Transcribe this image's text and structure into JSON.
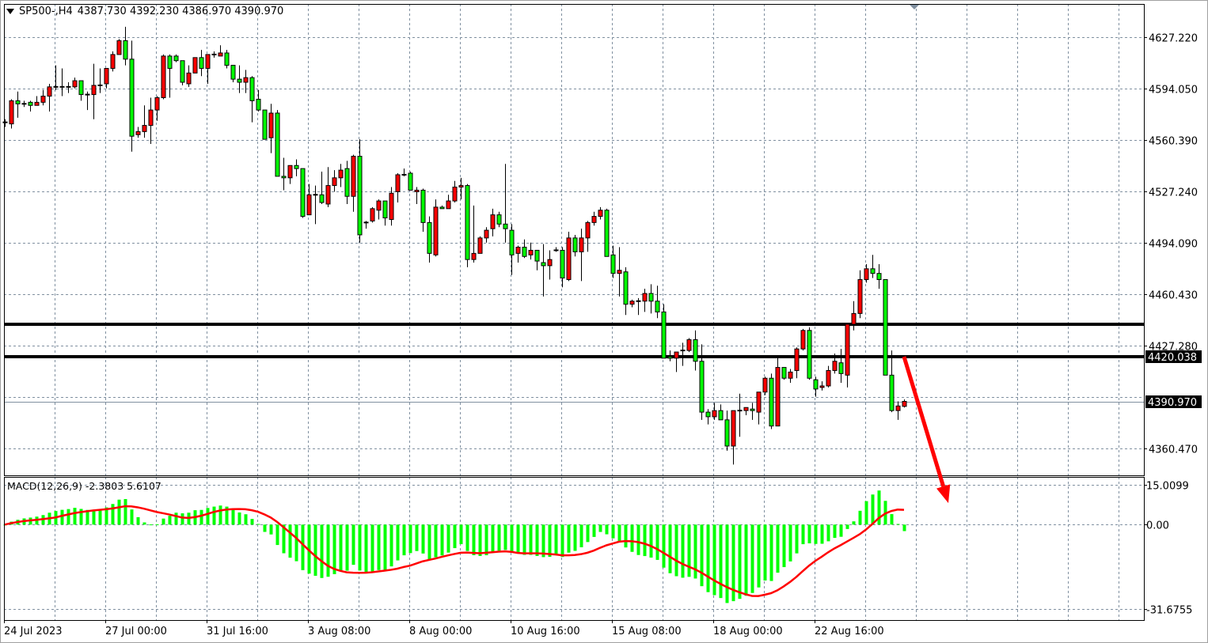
{
  "header": {
    "symbol": "SP500-,H4",
    "ohlc": "4387.730 4392.230 4386.970 4390.970"
  },
  "chart_data": {
    "type": "candlestick",
    "symbol": "SP500-",
    "timeframe": "H4",
    "candle_colors": {
      "bull": "#ff0000",
      "bear": "#00ff00",
      "outline": "#000000"
    },
    "ylim": [
      4343.0,
      4648.8
    ],
    "grid": true,
    "y_ticks": [
      "4627.220",
      "4594.050",
      "4560.390",
      "4527.240",
      "4494.090",
      "4460.430",
      "4427.280",
      "4360.470"
    ],
    "x_ticks": [
      {
        "index": 0,
        "label": "24 Jul 2023"
      },
      {
        "index": 16,
        "label": "27 Jul 00:00"
      },
      {
        "index": 32,
        "label": "31 Jul 16:00"
      },
      {
        "index": 48,
        "label": "3 Aug 08:00"
      },
      {
        "index": 64,
        "label": "8 Aug 00:00"
      },
      {
        "index": 80,
        "label": "10 Aug 16:00"
      },
      {
        "index": 96,
        "label": "15 Aug 08:00"
      },
      {
        "index": 112,
        "label": "18 Aug 00:00"
      },
      {
        "index": 128,
        "label": "22 Aug 16:00"
      }
    ],
    "horizontal_lines": [
      4441.0,
      4420.038
    ],
    "line_label": "4420.038",
    "current_price_label": "4390.970",
    "current_price": 4390.97,
    "arrow": {
      "color": "#ff0000",
      "from": {
        "index": 142,
        "price": 4420
      },
      "to": {
        "index": 149,
        "price": 4325
      }
    },
    "candles_ohlc": [
      [
        4572,
        4574,
        4569,
        4572
      ],
      [
        4571,
        4587,
        4568,
        4586
      ],
      [
        4586,
        4592,
        4575,
        4584
      ],
      [
        4584,
        4586,
        4582,
        4584
      ],
      [
        4585,
        4586,
        4579,
        4583
      ],
      [
        4583,
        4589,
        4583,
        4585
      ],
      [
        4585,
        4593,
        4583,
        4589
      ],
      [
        4589,
        4597,
        4579,
        4595
      ],
      [
        4595,
        4609,
        4593,
        4595
      ],
      [
        4595,
        4607,
        4589,
        4595
      ],
      [
        4595,
        4598,
        4591,
        4595
      ],
      [
        4595,
        4601,
        4594,
        4599
      ],
      [
        4599,
        4599,
        4586,
        4590
      ],
      [
        4590,
        4592,
        4580,
        4590
      ],
      [
        4590,
        4610,
        4574,
        4596
      ],
      [
        4596,
        4607,
        4591,
        4596
      ],
      [
        4597,
        4607,
        4594,
        4607
      ],
      [
        4607,
        4618,
        4605,
        4616
      ],
      [
        4616,
        4626,
        4616,
        4625
      ],
      [
        4625,
        4634,
        4609,
        4613
      ],
      [
        4613,
        4625,
        4553,
        4563
      ],
      [
        4564,
        4569,
        4562,
        4566
      ],
      [
        4566,
        4583,
        4562,
        4570
      ],
      [
        4570,
        4588,
        4558,
        4580
      ],
      [
        4580,
        4589,
        4573,
        4588
      ],
      [
        4588,
        4616,
        4587,
        4615
      ],
      [
        4615,
        4616,
        4588,
        4607
      ],
      [
        4615,
        4616,
        4611,
        4612
      ],
      [
        4612,
        4612,
        4596,
        4598
      ],
      [
        4597,
        4609,
        4595,
        4604
      ],
      [
        4604,
        4614,
        4604,
        4614
      ],
      [
        4614,
        4619,
        4602,
        4607
      ],
      [
        4607,
        4616,
        4597,
        4616
      ],
      [
        4616,
        4618,
        4614,
        4616
      ],
      [
        4615,
        4622,
        4615,
        4617
      ],
      [
        4617,
        4619,
        4607,
        4609
      ],
      [
        4609,
        4609,
        4598,
        4600
      ],
      [
        4600,
        4609,
        4591,
        4598
      ],
      [
        4598,
        4606,
        4591,
        4601
      ],
      [
        4601,
        4602,
        4572,
        4586
      ],
      [
        4587,
        4593,
        4579,
        4580
      ],
      [
        4580,
        4580,
        4561,
        4561
      ],
      [
        4562,
        4584,
        4552,
        4578
      ],
      [
        4578,
        4580,
        4537,
        4537
      ],
      [
        4537,
        4549,
        4528,
        4536
      ],
      [
        4536,
        4544,
        4532,
        4544
      ],
      [
        4544,
        4548,
        4537,
        4542
      ],
      [
        4542,
        4542,
        4510,
        4511
      ],
      [
        4512,
        4532,
        4512,
        4525
      ],
      [
        4525,
        4531,
        4506,
        4525
      ],
      [
        4525,
        4540,
        4519,
        4520
      ],
      [
        4519,
        4543,
        4517,
        4531
      ],
      [
        4531,
        4541,
        4527,
        4536
      ],
      [
        4536,
        4545,
        4530,
        4541
      ],
      [
        4542,
        4547,
        4519,
        4524
      ],
      [
        4524,
        4551,
        4514,
        4550
      ],
      [
        4550,
        4561,
        4494,
        4499
      ],
      [
        4507,
        4508,
        4503,
        4507
      ],
      [
        4508,
        4517,
        4507,
        4516
      ],
      [
        4515,
        4522,
        4509,
        4521
      ],
      [
        4521,
        4521,
        4505,
        4510
      ],
      [
        4509,
        4530,
        4505,
        4526
      ],
      [
        4527,
        4539,
        4520,
        4538
      ],
      [
        4538,
        4542,
        4537,
        4538
      ],
      [
        4539,
        4540,
        4528,
        4528
      ],
      [
        4527,
        4530,
        4519,
        4528
      ],
      [
        4528,
        4529,
        4501,
        4507
      ],
      [
        4507,
        4511,
        4481,
        4487
      ],
      [
        4486,
        4522,
        4485,
        4517
      ],
      [
        4517,
        4518,
        4516,
        4516
      ],
      [
        4516,
        4525,
        4516,
        4521
      ],
      [
        4521,
        4534,
        4520,
        4530
      ],
      [
        4530,
        4536,
        4522,
        4531
      ],
      [
        4531,
        4532,
        4478,
        4483
      ],
      [
        4483,
        4518,
        4481,
        4487
      ],
      [
        4487,
        4498,
        4487,
        4497
      ],
      [
        4497,
        4504,
        4494,
        4502
      ],
      [
        4503,
        4516,
        4498,
        4512
      ],
      [
        4512,
        4514,
        4504,
        4506
      ],
      [
        4506,
        4545,
        4494,
        4503
      ],
      [
        4502,
        4506,
        4473,
        4486
      ],
      [
        4487,
        4492,
        4481,
        4491
      ],
      [
        4491,
        4496,
        4484,
        4485
      ],
      [
        4486,
        4494,
        4483,
        4489
      ],
      [
        4489,
        4489,
        4476,
        4482
      ],
      [
        4481,
        4493,
        4459,
        4479
      ],
      [
        4479,
        4489,
        4470,
        4483
      ],
      [
        4489,
        4491,
        4488,
        4489
      ],
      [
        4489,
        4491,
        4465,
        4471
      ],
      [
        4470,
        4501,
        4469,
        4497
      ],
      [
        4497,
        4499,
        4485,
        4488
      ],
      [
        4488,
        4503,
        4469,
        4497
      ],
      [
        4497,
        4508,
        4488,
        4507
      ],
      [
        4507,
        4514,
        4505,
        4511
      ],
      [
        4511,
        4517,
        4509,
        4515
      ],
      [
        4515,
        4516,
        4485,
        4485
      ],
      [
        4486,
        4492,
        4471,
        4474
      ],
      [
        4474,
        4491,
        4459,
        4476
      ],
      [
        4475,
        4478,
        4447,
        4454
      ],
      [
        4454,
        4457,
        4452,
        4456
      ],
      [
        4456,
        4458,
        4447,
        4456
      ],
      [
        4456,
        4464,
        4449,
        4461
      ],
      [
        4461,
        4467,
        4448,
        4456
      ],
      [
        4456,
        4466,
        4445,
        4449
      ],
      [
        4449,
        4454,
        4419,
        4419
      ],
      [
        4420,
        4424,
        4417,
        4419
      ],
      [
        4419,
        4423,
        4410,
        4423
      ],
      [
        4424,
        4429,
        4414,
        4424
      ],
      [
        4424,
        4432,
        4423,
        4431
      ],
      [
        4431,
        4437,
        4411,
        4417
      ],
      [
        4417,
        4428,
        4379,
        4384
      ],
      [
        4384,
        4386,
        4376,
        4381
      ],
      [
        4381,
        4390,
        4379,
        4385
      ],
      [
        4385,
        4389,
        4379,
        4379
      ],
      [
        4379,
        4385,
        4359,
        4362
      ],
      [
        4362,
        4385,
        4350,
        4385
      ],
      [
        4385,
        4396,
        4368,
        4385
      ],
      [
        4385,
        4387,
        4382,
        4387
      ],
      [
        4386,
        4390,
        4379,
        4385
      ],
      [
        4384,
        4397,
        4376,
        4397
      ],
      [
        4397,
        4407,
        4395,
        4406
      ],
      [
        4406,
        4409,
        4373,
        4375
      ],
      [
        4375,
        4419,
        4375,
        4413
      ],
      [
        4413,
        4413,
        4405,
        4406
      ],
      [
        4406,
        4412,
        4403,
        4410
      ],
      [
        4411,
        4426,
        4406,
        4425
      ],
      [
        4425,
        4438,
        4424,
        4437
      ],
      [
        4437,
        4439,
        4405,
        4406
      ],
      [
        4405,
        4407,
        4394,
        4399
      ],
      [
        4400,
        4404,
        4398,
        4401
      ],
      [
        4401,
        4414,
        4400,
        4411
      ],
      [
        4411,
        4422,
        4409,
        4417
      ],
      [
        4416,
        4425,
        4403,
        4409
      ],
      [
        4408,
        4442,
        4400,
        4441
      ],
      [
        4441,
        4456,
        4437,
        4448
      ],
      [
        4448,
        4476,
        4445,
        4470
      ],
      [
        4470,
        4480,
        4468,
        4477
      ],
      [
        4477,
        4486,
        4471,
        4474
      ],
      [
        4474,
        4480,
        4464,
        4470
      ],
      [
        4470,
        4470,
        4408,
        4408
      ],
      [
        4408,
        4424,
        4384,
        4385
      ],
      [
        4385,
        4391,
        4379,
        4388
      ],
      [
        4387.73,
        4392.23,
        4386.97,
        4390.97
      ]
    ],
    "macd": {
      "label": "MACD(12,26,9) -2.3803 5.6107",
      "fast": 12,
      "slow": 26,
      "signal_period": 9,
      "main": -2.3803,
      "signal": 5.6107,
      "ylim": [
        -36,
        18
      ],
      "y_ticks": [
        {
          "value": 15.0099,
          "label": "15.0099"
        },
        {
          "value": 0,
          "label": "0.00"
        },
        {
          "value": -31.6755,
          "label": "-31.6755"
        }
      ],
      "histogram_color": "#00ff00",
      "signal_color": "#ff0000"
    }
  }
}
